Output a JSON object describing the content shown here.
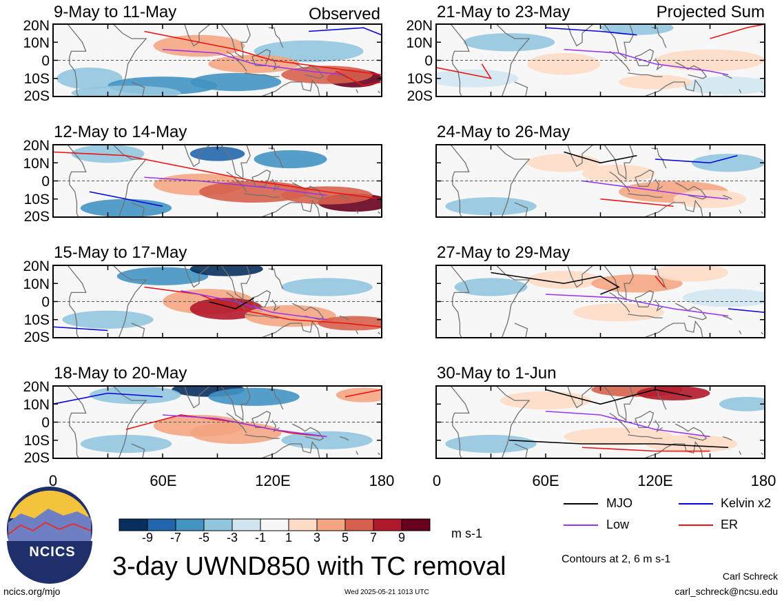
{
  "chart_data": {
    "type": "heatmap",
    "title": "3-day UWND850 with TC removal",
    "units": "m s-1",
    "colorbar": {
      "ticks": [
        "-9",
        "-7",
        "-5",
        "-3",
        "-1",
        "1",
        "3",
        "5",
        "7",
        "9"
      ],
      "colors": [
        "#08305e",
        "#2166ac",
        "#4393c3",
        "#92c5de",
        "#d1e5f0",
        "#f7f7f7",
        "#fddbc7",
        "#f4a582",
        "#d6604d",
        "#b2182b",
        "#67001f"
      ]
    },
    "x_ticks": [
      "0",
      "60E",
      "120E",
      "180"
    ],
    "y_ticks": [
      "20N",
      "10N",
      "0",
      "10S",
      "20S"
    ],
    "xlim": [
      0,
      180
    ],
    "ylim": [
      -20,
      20
    ],
    "panels": [
      {
        "title": "9-May to 11-May",
        "tag": "Observed"
      },
      {
        "title": "21-May to 23-May",
        "tag": "Projected Sum"
      },
      {
        "title": "12-May to 14-May",
        "tag": ""
      },
      {
        "title": "24-May to 26-May",
        "tag": ""
      },
      {
        "title": "15-May to 17-May",
        "tag": ""
      },
      {
        "title": "27-May to 29-May",
        "tag": ""
      },
      {
        "title": "18-May to 20-May",
        "tag": ""
      },
      {
        "title": "30-May to 1-Jun",
        "tag": ""
      }
    ],
    "legend": [
      {
        "label": "MJO",
        "color": "#000000"
      },
      {
        "label": "Kelvin x2",
        "color": "#0000dd"
      },
      {
        "label": "Low",
        "color": "#9933ee"
      },
      {
        "label": "ER",
        "color": "#ee1111"
      }
    ],
    "contours_note": "Contours at 2, 6 m s-1"
  },
  "logo_text": "NCICS",
  "footer": {
    "left": "ncics.org/mjo",
    "center": "Wed 2025-05-21 1013 UTC",
    "author": "Carl Schreck",
    "email": "carl_schreck@ncsu.edu"
  }
}
